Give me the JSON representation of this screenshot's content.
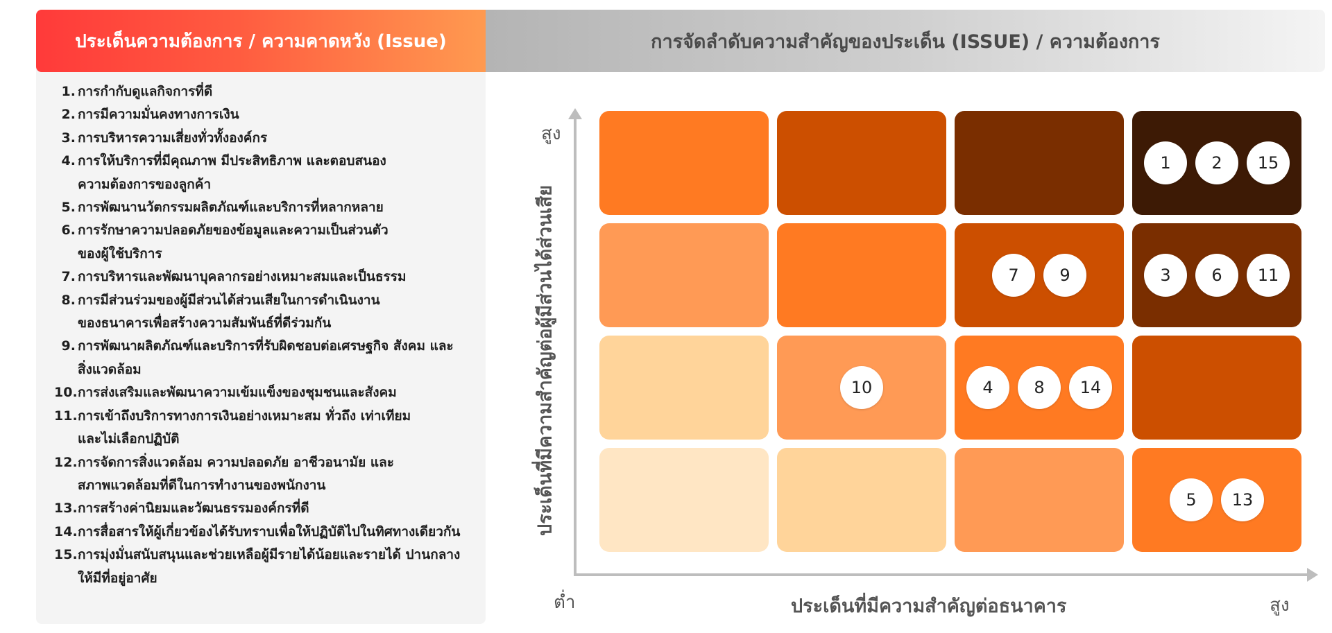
{
  "left_header": {
    "title": "ประเด็นความต้องการ / ความคาดหวัง (Issue)"
  },
  "right_header": {
    "title": "การจัดลำดับความสำคัญของประเด็น (ISSUE) / ความต้องการ"
  },
  "issues": [
    {
      "num": "1.",
      "text": "การกำกับดูแลกิจการที่ดี"
    },
    {
      "num": "2.",
      "text": "การมีความมั่นคงทางการเงิน"
    },
    {
      "num": "3.",
      "text": "การบริหารความเสี่ยงทั่วทั้งองค์กร"
    },
    {
      "num": "4.",
      "text": "การให้บริการที่มีคุณภาพ มีประสิทธิภาพ และตอบสนอง\nความต้องการของลูกค้า"
    },
    {
      "num": "5.",
      "text": "การพัฒนานวัตกรรมผลิตภัณฑ์และบริการที่หลากหลาย"
    },
    {
      "num": "6.",
      "text": "การรักษาความปลอดภัยของข้อมูลและความเป็นส่วนตัว\nของผู้ใช้บริการ"
    },
    {
      "num": "7.",
      "text": "การบริหารและพัฒนาบุคลากรอย่างเหมาะสมและเป็นธรรม"
    },
    {
      "num": "8.",
      "text": "การมีส่วนร่วมของผู้มีส่วนได้ส่วนเสียในการดำเนินงาน\nของธนาคารเพื่อสร้างความสัมพันธ์ที่ดีร่วมกัน"
    },
    {
      "num": "9.",
      "text": "การพัฒนาผลิตภัณฑ์และบริการที่รับผิดชอบต่อเศรษฐกิจ สังคม และ\nสิ่งแวดล้อม"
    },
    {
      "num": "10.",
      "text": "การส่งเสริมและพัฒนาความเข้มแข็งของชุมชนและสังคม"
    },
    {
      "num": "11.",
      "text": "การเข้าถึงบริการทางการเงินอย่างเหมาะสม ทั่วถึง เท่าเทียม\nและไม่เลือกปฏิบัติ"
    },
    {
      "num": "12.",
      "text": "การจัดการสิ่งแวดล้อม ความปลอดภัย อาชีวอนามัย และ\nสภาพแวดล้อมที่ดีในการทำงานของพนักงาน"
    },
    {
      "num": "13.",
      "text": "การสร้างค่านิยมและวัฒนธรรมองค์กรที่ดี"
    },
    {
      "num": "14.",
      "text": "การสื่อสารให้ผู้เกี่ยวข้องได้รับทราบเพื่อให้ปฏิบัติไปในทิศทางเดียวกัน"
    },
    {
      "num": "15.",
      "text": "การมุ่งมั่นสนับสนุนและช่วยเหลือผู้มีรายได้น้อยและรายได้  ปานกลาง\nให้มีที่อยู่อาศัย"
    }
  ],
  "matrix": {
    "y_axis_title": "ประเด็นที่มีความสำคัญต่อผู้มีส่วนได้ส่วนเสีย",
    "x_axis_title": "ประเด็นที่มีความสำคัญต่อธนาคาร",
    "y_high_label": "สูง",
    "x_low_label": "ต่ำ",
    "x_high_label": "สูง",
    "colors": {
      "grid": [
        [
          "#ff7a22",
          "#cc4f00",
          "#7a2e00",
          "#3d1a05"
        ],
        [
          "#ff9a55",
          "#ff7a22",
          "#cc4f00",
          "#7a2e00"
        ],
        [
          "#ffd49a",
          "#ff9a55",
          "#ff7a22",
          "#cc4f00"
        ],
        [
          "#ffe6c4",
          "#ffd49a",
          "#ff9a55",
          "#ff7a22"
        ]
      ]
    },
    "cells": [
      {
        "row": 0,
        "col": 3,
        "items": [
          "1",
          "2",
          "15"
        ]
      },
      {
        "row": 1,
        "col": 2,
        "items": [
          "7",
          "9"
        ]
      },
      {
        "row": 1,
        "col": 3,
        "items": [
          "3",
          "6",
          "11"
        ]
      },
      {
        "row": 2,
        "col": 1,
        "items": [
          "10"
        ]
      },
      {
        "row": 2,
        "col": 2,
        "items": [
          "4",
          "8",
          "14"
        ]
      },
      {
        "row": 3,
        "col": 3,
        "items": [
          "5",
          "13"
        ]
      }
    ]
  }
}
